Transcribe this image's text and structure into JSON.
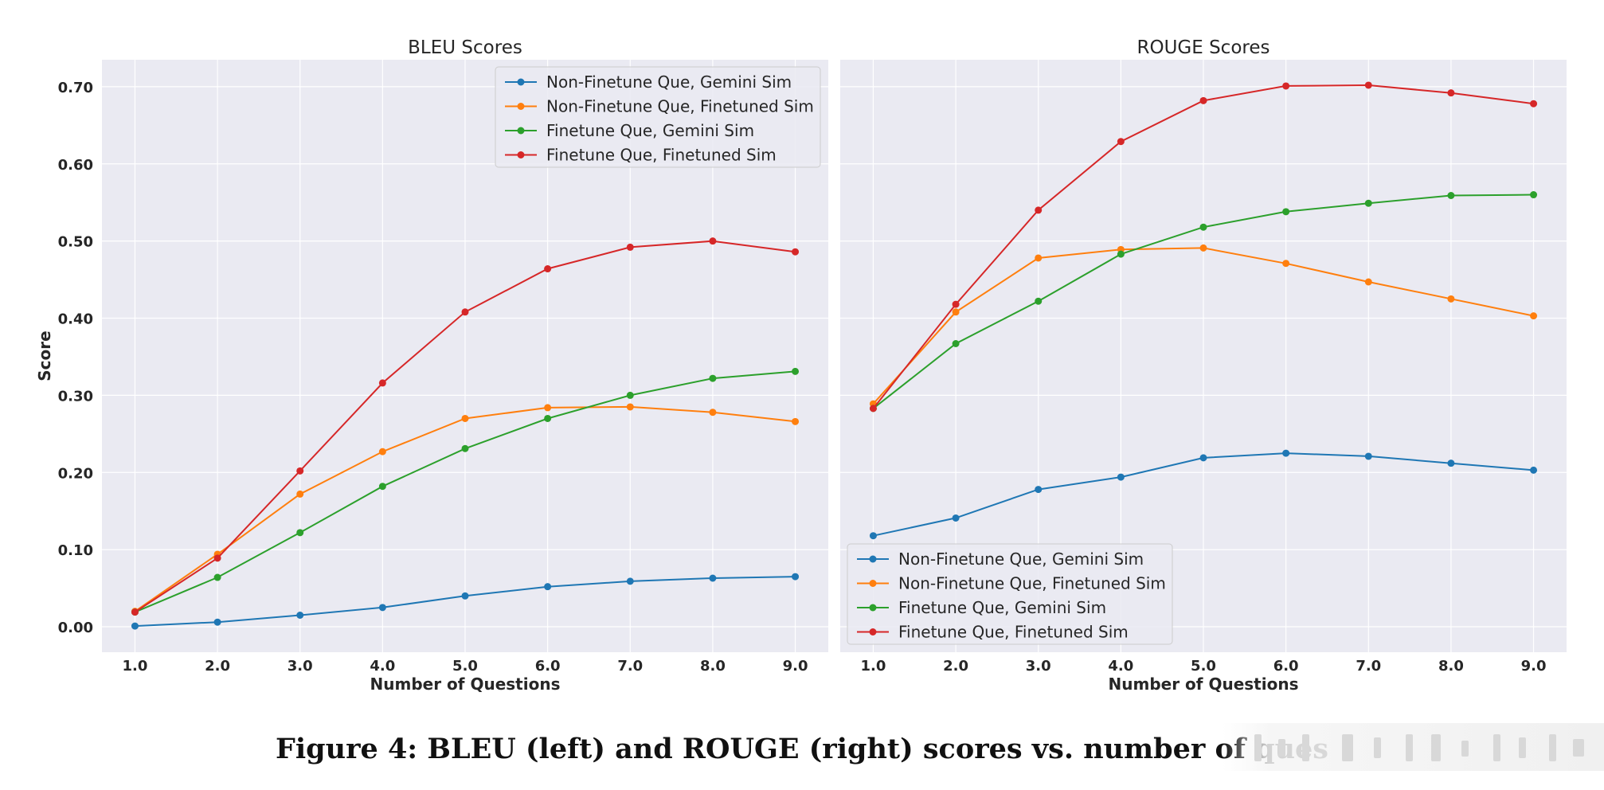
{
  "colors": {
    "panel_bg": "#eaeaf2",
    "grid": "#ffffff",
    "series": [
      "#1f77b4",
      "#ff7f0e",
      "#2ca02c",
      "#d62728"
    ],
    "text": "#262626"
  },
  "caption": "Figure 4: BLEU (left) and ROUGE (right) scores vs. number of ques",
  "chart_data": [
    {
      "type": "line",
      "title": "BLEU Scores",
      "xlabel": "Number of Questions",
      "ylabel": "Score",
      "xlim": [
        0.6,
        9.4
      ],
      "ylim": [
        -0.033,
        0.735
      ],
      "xticks": [
        1,
        2,
        3,
        4,
        5,
        6,
        7,
        8,
        9
      ],
      "xtick_labels": [
        "1.0",
        "2.0",
        "3.0",
        "4.0",
        "5.0",
        "6.0",
        "7.0",
        "8.0",
        "9.0"
      ],
      "yticks": [
        0,
        0.1,
        0.2,
        0.3,
        0.4,
        0.5,
        0.6,
        0.7
      ],
      "ytick_labels": [
        "0.00",
        "0.10",
        "0.20",
        "0.30",
        "0.40",
        "0.50",
        "0.60",
        "0.70"
      ],
      "grid": true,
      "legend_position": "upper right",
      "x": [
        1,
        2,
        3,
        4,
        5,
        6,
        7,
        8,
        9
      ],
      "series": [
        {
          "name": "Non-Finetune Que, Gemini Sim",
          "values": [
            0.001,
            0.006,
            0.015,
            0.025,
            0.04,
            0.052,
            0.059,
            0.063,
            0.065
          ]
        },
        {
          "name": "Non-Finetune Que, Finetuned Sim",
          "values": [
            0.02,
            0.094,
            0.172,
            0.227,
            0.27,
            0.284,
            0.285,
            0.278,
            0.266
          ]
        },
        {
          "name": "Finetune Que, Gemini Sim",
          "values": [
            0.019,
            0.064,
            0.122,
            0.182,
            0.231,
            0.27,
            0.3,
            0.322,
            0.331
          ]
        },
        {
          "name": "Finetune Que, Finetuned Sim",
          "values": [
            0.019,
            0.089,
            0.202,
            0.316,
            0.408,
            0.464,
            0.492,
            0.5,
            0.486
          ]
        }
      ]
    },
    {
      "type": "line",
      "title": "ROUGE Scores",
      "xlabel": "Number of Questions",
      "ylabel": "",
      "xlim": [
        0.6,
        9.4
      ],
      "ylim": [
        -0.033,
        0.735
      ],
      "xticks": [
        1,
        2,
        3,
        4,
        5,
        6,
        7,
        8,
        9
      ],
      "xtick_labels": [
        "1.0",
        "2.0",
        "3.0",
        "4.0",
        "5.0",
        "6.0",
        "7.0",
        "8.0",
        "9.0"
      ],
      "yticks": [
        0,
        0.1,
        0.2,
        0.3,
        0.4,
        0.5,
        0.6,
        0.7
      ],
      "ytick_labels": [],
      "grid": true,
      "legend_position": "lower left",
      "x": [
        1,
        2,
        3,
        4,
        5,
        6,
        7,
        8,
        9
      ],
      "series": [
        {
          "name": "Non-Finetune Que, Gemini Sim",
          "values": [
            0.118,
            0.141,
            0.178,
            0.194,
            0.219,
            0.225,
            0.221,
            0.212,
            0.203
          ]
        },
        {
          "name": "Non-Finetune Que, Finetuned Sim",
          "values": [
            0.289,
            0.408,
            0.478,
            0.489,
            0.491,
            0.471,
            0.447,
            0.425,
            0.403
          ]
        },
        {
          "name": "Finetune Que, Gemini Sim",
          "values": [
            0.283,
            0.367,
            0.422,
            0.483,
            0.518,
            0.538,
            0.549,
            0.559,
            0.56
          ]
        },
        {
          "name": "Finetune Que, Finetuned Sim",
          "values": [
            0.283,
            0.418,
            0.54,
            0.629,
            0.682,
            0.701,
            0.702,
            0.692,
            0.678
          ]
        }
      ]
    }
  ]
}
